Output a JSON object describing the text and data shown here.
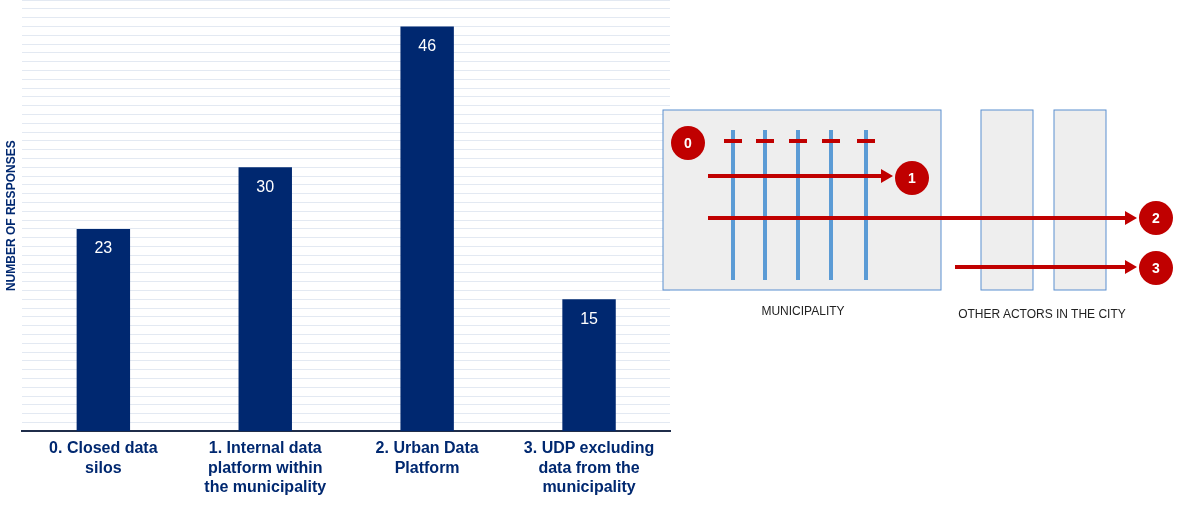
{
  "chart_data": {
    "type": "bar",
    "ylabel": "NUMBER OF RESPONSES",
    "categories": [
      "0. Closed data silos",
      "1. Internal data platform within the municipality",
      "2. Urban Data Platform",
      "3. UDP excluding data from the municipality"
    ],
    "values": [
      23,
      30,
      46,
      15
    ],
    "color": "#002870",
    "data_labels": true,
    "ylim": [
      0,
      49
    ],
    "yticks": [
      {
        "value": 0,
        "label": null
      },
      {
        "value": 1,
        "label": null
      },
      {
        "value": 2,
        "label": null
      },
      {
        "value": 3,
        "label": null
      },
      {
        "value": 4,
        "label": null
      },
      {
        "value": 5,
        "label": null
      },
      {
        "value": 6,
        "label": null
      },
      {
        "value": 7,
        "label": null
      },
      {
        "value": 8,
        "label": null
      },
      {
        "value": 9,
        "label": null
      },
      {
        "value": 10,
        "label": null
      },
      {
        "value": 11,
        "label": null
      },
      {
        "value": 12,
        "label": null
      },
      {
        "value": 13,
        "label": null
      },
      {
        "value": 14,
        "label": null
      },
      {
        "value": 15,
        "label": null
      },
      {
        "value": 16,
        "label": null
      },
      {
        "value": 17,
        "label": null
      },
      {
        "value": 18,
        "label": null
      },
      {
        "value": 19,
        "label": null
      },
      {
        "value": 20,
        "label": null
      },
      {
        "value": 21,
        "label": null
      },
      {
        "value": 22,
        "label": null
      },
      {
        "value": 23,
        "label": null
      },
      {
        "value": 24,
        "label": null
      },
      {
        "value": 25,
        "label": null
      },
      {
        "value": 26,
        "label": null
      },
      {
        "value": 27,
        "label": null
      },
      {
        "value": 28,
        "label": null
      },
      {
        "value": 29,
        "label": null
      },
      {
        "value": 30,
        "label": null
      },
      {
        "value": 31,
        "label": null
      },
      {
        "value": 32,
        "label": null
      },
      {
        "value": 33,
        "label": null
      },
      {
        "value": 34,
        "label": null
      },
      {
        "value": 35,
        "label": null
      },
      {
        "value": 36,
        "label": null
      },
      {
        "value": 37,
        "label": null
      },
      {
        "value": 38,
        "label": null
      },
      {
        "value": 39,
        "label": null
      },
      {
        "value": 40,
        "label": null
      },
      {
        "value": 41,
        "label": null
      },
      {
        "value": 42,
        "label": null
      },
      {
        "value": 43,
        "label": null
      },
      {
        "value": 44,
        "label": null
      },
      {
        "value": 45,
        "label": null
      },
      {
        "value": 46,
        "label": null
      },
      {
        "value": 47,
        "label": null
      },
      {
        "value": 48,
        "label": null
      },
      {
        "value": 49,
        "label": null
      }
    ],
    "grid": "y",
    "tick_labels": "x",
    "legend": false,
    "annotations": [
      "0",
      "1",
      "2",
      "3",
      "MUNICIPALITY",
      "OTHER ACTORS IN THE CITY"
    ]
  }
}
